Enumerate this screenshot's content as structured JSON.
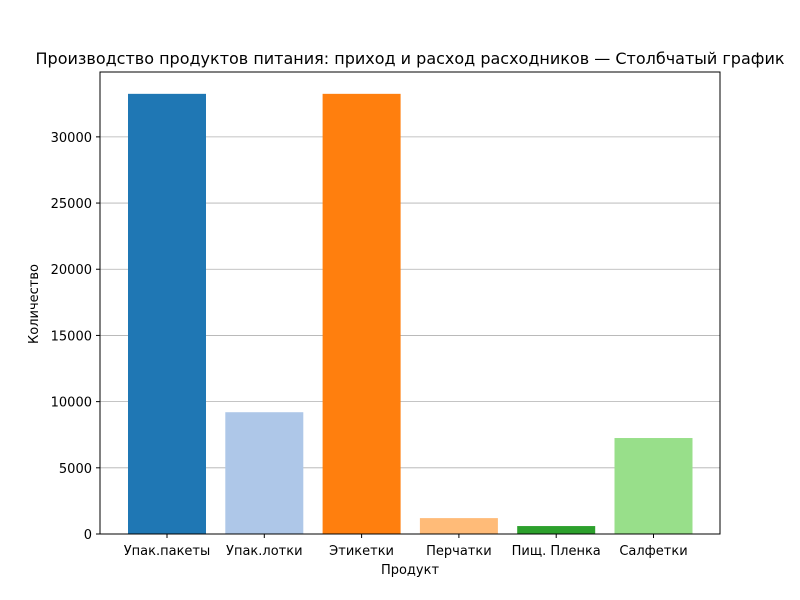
{
  "chart_data": {
    "type": "bar",
    "title": "Производство продуктов питания: приход и расход расходников — Столбчатый график",
    "xlabel": "Продукт",
    "ylabel": "Количество",
    "categories": [
      "Упак.пакеты",
      "Упак.лотки",
      "Этикетки",
      "Перчатки",
      "Пищ. Пленка",
      "Салфетки"
    ],
    "values": [
      33250,
      9200,
      33250,
      1200,
      600,
      7250
    ],
    "colors": [
      "#1f77b4",
      "#aec7e8",
      "#ff7f0e",
      "#ffbb78",
      "#2ca02c",
      "#98df8a"
    ],
    "ylim": [
      0,
      34900
    ],
    "yticks": [
      0,
      5000,
      10000,
      15000,
      20000,
      25000,
      30000
    ],
    "grid": "y"
  }
}
